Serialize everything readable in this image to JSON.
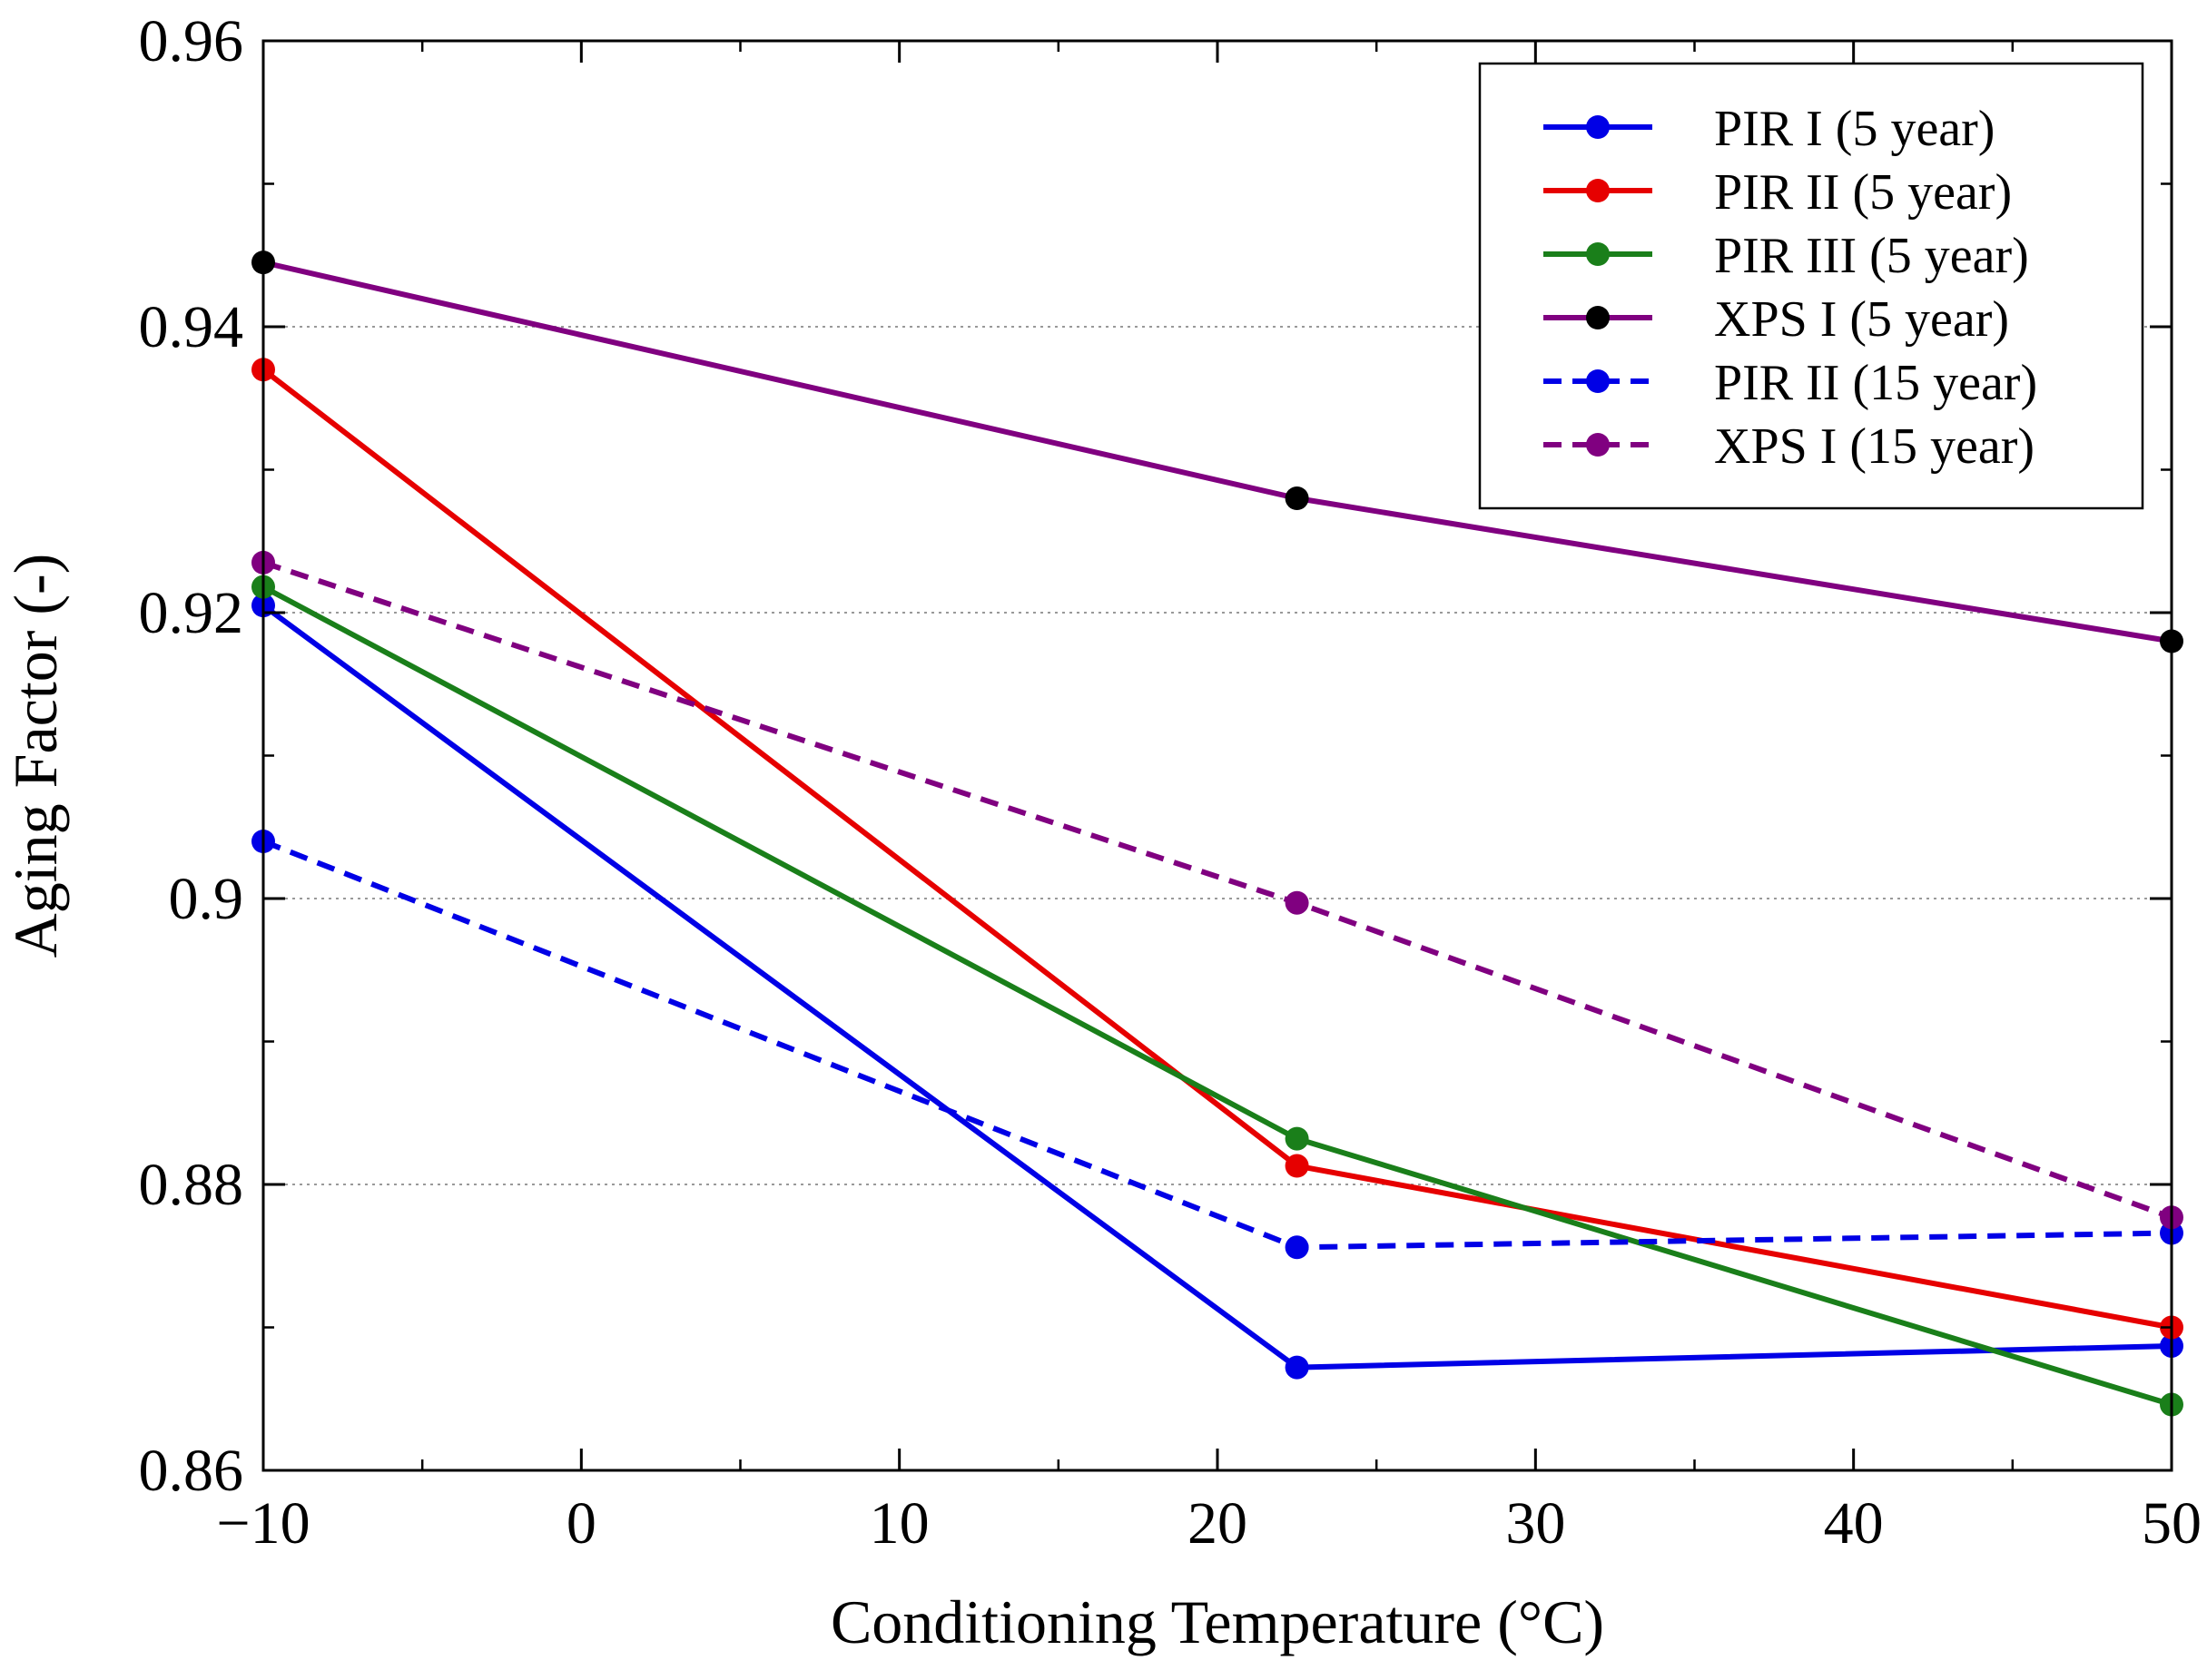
{
  "chart_data": {
    "type": "line",
    "title": "",
    "xlabel": "Conditioning Temperature (°C)",
    "ylabel": "Aging Factor (-)",
    "xlim": [
      -10,
      50
    ],
    "ylim": [
      0.86,
      0.96
    ],
    "x_ticks": [
      -10,
      0,
      10,
      20,
      30,
      40,
      50
    ],
    "x_tick_labels": [
      "−10",
      "0",
      "10",
      "20",
      "30",
      "40",
      "50"
    ],
    "y_ticks": [
      0.86,
      0.88,
      0.9,
      0.92,
      0.94,
      0.96
    ],
    "y_tick_labels": [
      "0.86",
      "0.88",
      "0.9",
      "0.92",
      "0.94",
      "0.96"
    ],
    "grid": "horizontal dotted",
    "legend_position": "top-right",
    "series": [
      {
        "name": "PIR I (5 year)",
        "line_color": "#0000e6",
        "marker_color": "#0000e6",
        "dash": "solid",
        "x": [
          -10,
          22.5,
          50
        ],
        "y": [
          0.9205,
          0.8672,
          0.8687
        ]
      },
      {
        "name": "PIR II (5 year)",
        "line_color": "#e60000",
        "marker_color": "#e60000",
        "dash": "solid",
        "x": [
          -10,
          22.5,
          50
        ],
        "y": [
          0.937,
          0.8813,
          0.87
        ]
      },
      {
        "name": "PIR III (5 year)",
        "line_color": "#1a7f1a",
        "marker_color": "#1a7f1a",
        "dash": "solid",
        "x": [
          -10,
          22.5,
          50
        ],
        "y": [
          0.9218,
          0.8832,
          0.8646
        ]
      },
      {
        "name": "XPS I (5 year)",
        "line_color": "#800080",
        "marker_color": "#000000",
        "dash": "solid",
        "x": [
          -10,
          22.5,
          50
        ],
        "y": [
          0.9445,
          0.928,
          0.918
        ]
      },
      {
        "name": "PIR II (15 year)",
        "line_color": "#0000e6",
        "marker_color": "#0000e6",
        "dash": "dashed",
        "x": [
          -10,
          22.5,
          50
        ],
        "y": [
          0.904,
          0.8756,
          0.8766
        ]
      },
      {
        "name": "XPS I (15 year)",
        "line_color": "#800080",
        "marker_color": "#800080",
        "dash": "dashed",
        "x": [
          -10,
          22.5,
          50
        ],
        "y": [
          0.9235,
          0.8997,
          0.8777
        ]
      }
    ]
  }
}
